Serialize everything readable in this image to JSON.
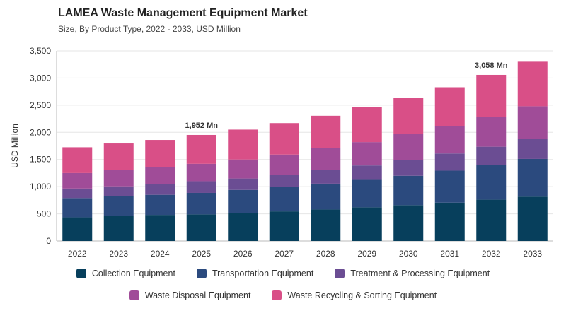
{
  "title": "LAMEA Waste Management Equipment Market",
  "subtitle": "Size, By Product Type, 2022 - 2033, USD Million",
  "chart_data": {
    "type": "bar",
    "stacked": true,
    "ylabel": "USD Million",
    "xlabel": "",
    "ylim": [
      0,
      3500
    ],
    "yticks": [
      "0",
      "500",
      "1,000",
      "1,500",
      "2,000",
      "2,500",
      "3,000",
      "3,500"
    ],
    "grid": true,
    "legend_position": "bottom",
    "categories": [
      "2022",
      "2023",
      "2024",
      "2025",
      "2026",
      "2027",
      "2028",
      "2029",
      "2030",
      "2031",
      "2032",
      "2033"
    ],
    "series": [
      {
        "name": "Collection Equipment",
        "color": "#073f5c",
        "values": [
          435,
          460,
          480,
          490,
          515,
          545,
          580,
          620,
          660,
          705,
          760,
          815
        ]
      },
      {
        "name": "Transportation Equipment",
        "color": "#2b4a7e",
        "values": [
          355,
          360,
          370,
          395,
          425,
          450,
          475,
          505,
          540,
          590,
          640,
          695
        ]
      },
      {
        "name": "Treatment & Processing Equipment",
        "color": "#6b4d93",
        "values": [
          175,
          185,
          200,
          215,
          210,
          225,
          250,
          265,
          295,
          315,
          335,
          370
        ]
      },
      {
        "name": "Waste Disposal Equipment",
        "color": "#a04c98",
        "values": [
          285,
          300,
          310,
          320,
          350,
          370,
          400,
          430,
          475,
          505,
          555,
          600
        ]
      },
      {
        "name": "Waste Recycling & Sorting Equipment",
        "color": "#d94f87",
        "values": [
          475,
          490,
          500,
          532,
          550,
          580,
          600,
          640,
          670,
          715,
          768,
          820
        ]
      }
    ],
    "annotations": [
      {
        "category": "2025",
        "text": "1,952 Mn"
      },
      {
        "category": "2032",
        "text": "3,058 Mn"
      }
    ]
  }
}
